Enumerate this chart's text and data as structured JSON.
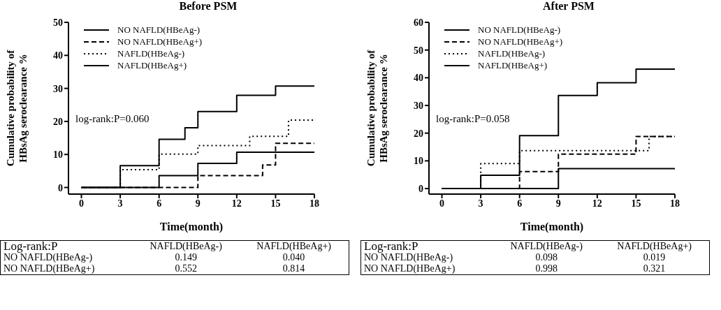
{
  "chart_data": [
    {
      "type": "step",
      "title": "Before PSM",
      "xlabel": "Time(month)",
      "ylabel": "Cumulative probability of\nHBsAg seroclearance %",
      "xlim": [
        -1,
        18
      ],
      "xticks": [
        0,
        3,
        6,
        9,
        12,
        15,
        18
      ],
      "ylim": [
        -2,
        50
      ],
      "yticks": [
        0,
        10,
        20,
        30,
        40,
        50
      ],
      "legend": "top left",
      "grid": false,
      "series": [
        {
          "name": "NO NAFLD(HBeAg-)",
          "color": "#000000",
          "line_style": "solid",
          "x": [
            0,
            3,
            6,
            8,
            9,
            12,
            15,
            18
          ],
          "values": [
            0,
            6.6,
            14.6,
            18.1,
            23,
            27.9,
            30.7,
            30.7
          ]
        },
        {
          "name": "NO NAFLD(HBeAg+)",
          "color": "#000000",
          "line_style": "dashed",
          "x": [
            0,
            9,
            14,
            15,
            18
          ],
          "values": [
            0,
            3.6,
            6.8,
            13.4,
            13.4
          ]
        },
        {
          "name": "NAFLD(HBeAg-)",
          "color": "#000000",
          "line_style": "dotted",
          "x": [
            0,
            3,
            6,
            9,
            13,
            16,
            18
          ],
          "values": [
            0,
            5.4,
            10.1,
            12.7,
            15.5,
            20.4,
            20.4
          ]
        },
        {
          "name": "NAFLD(HBeAg+)",
          "color": "#000000",
          "line_style": "solid",
          "x": [
            0,
            6,
            9,
            12,
            18
          ],
          "values": [
            0,
            3.6,
            7.3,
            10.7,
            10.7
          ]
        }
      ],
      "annotations": [
        "log-rank:P=0.060",
        "Log-rank:P",
        "NAFLD(HBeAg-)",
        "NAFLD(HBeAg+)",
        "NO NAFLD(HBeAg-)",
        "0.149",
        "0.040",
        "NO NAFLD(HBeAg+)",
        "0.552",
        "0.814"
      ]
    },
    {
      "type": "step",
      "title": "After PSM",
      "xlabel": "Time(month)",
      "ylabel": "Cumulative probability of\nHBsAg seroclearance %",
      "xlim": [
        -1,
        18
      ],
      "xticks": [
        0,
        3,
        6,
        9,
        12,
        15,
        18
      ],
      "ylim": [
        -2,
        60
      ],
      "yticks": [
        0,
        10,
        20,
        30,
        40,
        50,
        60
      ],
      "legend": "top left",
      "grid": false,
      "series": [
        {
          "name": "NO NAFLD(HBeAg-)",
          "color": "#000000",
          "line_style": "solid",
          "x": [
            0,
            3,
            6,
            9,
            12,
            15,
            18
          ],
          "values": [
            0,
            4.8,
            19.1,
            33.6,
            38.2,
            43.1,
            43.1
          ]
        },
        {
          "name": "NO NAFLD(HBeAg+)",
          "color": "#000000",
          "line_style": "dashed",
          "x": [
            0,
            6,
            9,
            15,
            18
          ],
          "values": [
            0,
            6.1,
            12.4,
            18.8,
            18.8
          ]
        },
        {
          "name": "NAFLD(HBeAg-)",
          "color": "#000000",
          "line_style": "dotted",
          "x": [
            0,
            3,
            6,
            16,
            18
          ],
          "values": [
            0,
            9,
            13.7,
            18.8,
            18.8
          ]
        },
        {
          "name": "NAFLD(HBeAg+)",
          "color": "#000000",
          "line_style": "solid",
          "x": [
            0,
            9,
            18
          ],
          "values": [
            0,
            7.2,
            7.2
          ]
        }
      ],
      "annotations": [
        "log-rank:P=0.058",
        "Log-rank:P",
        "NAFLD(HBeAg-)",
        "NAFLD(HBeAg+)",
        "NO NAFLD(HBeAg-)",
        "0.098",
        "0.019",
        "NO NAFLD(HBeAg+)",
        "0.998",
        "0.321"
      ]
    }
  ]
}
